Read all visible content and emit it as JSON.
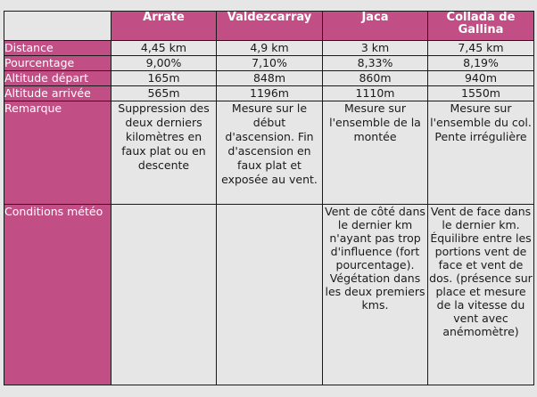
{
  "columns": [
    "Arrate",
    "Valdezcarray",
    "Jaca",
    "Collada de Gallina"
  ],
  "rows": [
    {
      "label": "Distance",
      "values": [
        "4,45 km",
        "4,9 km",
        "3 km",
        "7,45 km"
      ]
    },
    {
      "label": "Pourcentage",
      "values": [
        "9,00%",
        "7,10%",
        "8,33%",
        "8,19%"
      ]
    },
    {
      "label": "Altitude départ",
      "values": [
        "165m",
        "848m",
        "860m",
        "940m"
      ]
    },
    {
      "label": "Altitude arrivée",
      "values": [
        "565m",
        "1196m",
        "1110m",
        "1550m"
      ]
    },
    {
      "label": "Remarque",
      "values": [
        "Suppression des deux derniers kilomètres en faux plat ou en descente",
        "Mesure sur le début d'ascension. Fin d'ascension en faux plat et exposée au vent.",
        "Mesure sur l'ensemble de la montée",
        "Mesure sur l'ensemble du col. Pente irrégulière"
      ]
    },
    {
      "label": "Conditions météo",
      "values": [
        "",
        "",
        "Vent de côté dans le dernier km n'ayant pas trop d'influence (fort pourcentage). Végétation dans les deux premiers kms.",
        "Vent de face dans le dernier km. Équilibre entre les portions vent de face et vent de dos. (présence sur place et mesure de la vitesse du vent avec anémomètre)"
      ]
    }
  ],
  "colors": {
    "header_bg": "#c14f86",
    "header_text": "#ffffff",
    "cell_bg": "#e6e6e6",
    "border": "#1a1a1a"
  }
}
